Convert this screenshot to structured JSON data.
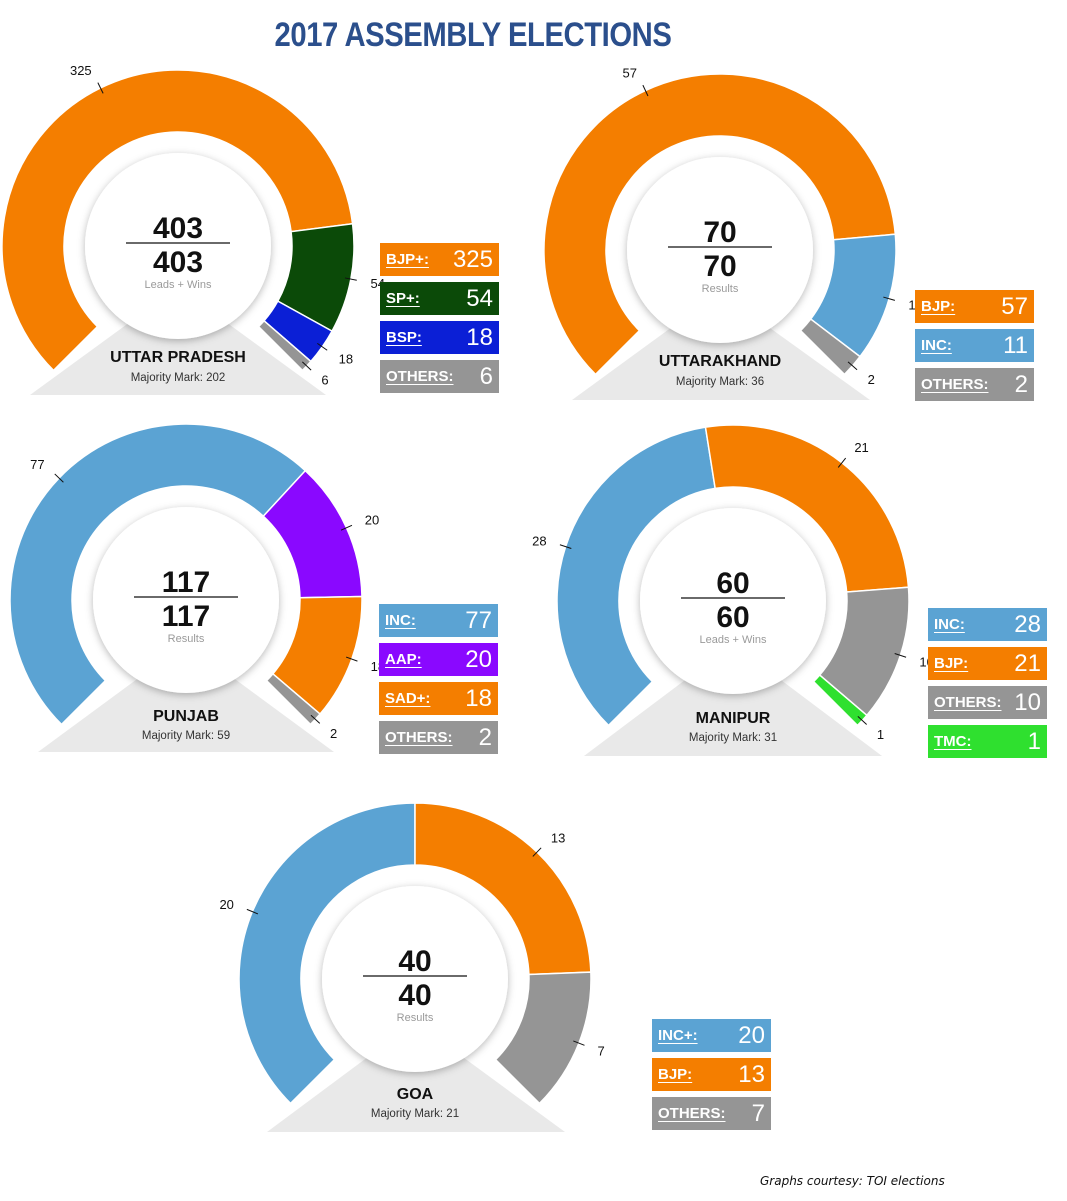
{
  "title": "2017 ASSEMBLY ELECTIONS",
  "credit": "Graphs courtesy: TOI elections",
  "chart_data": [
    {
      "type": "pie",
      "title": "UTTAR PRADESH",
      "majority": "Majority Mark: 202",
      "total_top": "403",
      "total_bottom": "403",
      "subcaption": "Leads + Wins",
      "slices": [
        {
          "label": "BJP+:",
          "value": 325,
          "color": "#f47e00"
        },
        {
          "label": "SP+:",
          "value": 54,
          "color": "#0b4a08"
        },
        {
          "label": "BSP:",
          "value": 18,
          "color": "#0b1fd6"
        },
        {
          "label": "OTHERS:",
          "value": 6,
          "color": "#959595"
        }
      ]
    },
    {
      "type": "pie",
      "title": "UTTARAKHAND",
      "majority": "Majority Mark: 36",
      "total_top": "70",
      "total_bottom": "70",
      "subcaption": "Results",
      "slices": [
        {
          "label": "BJP:",
          "value": 57,
          "color": "#f47e00"
        },
        {
          "label": "INC:",
          "value": 11,
          "color": "#5ba3d3"
        },
        {
          "label": "OTHERS:",
          "value": 2,
          "color": "#959595"
        }
      ]
    },
    {
      "type": "pie",
      "title": "PUNJAB",
      "majority": "Majority Mark: 59",
      "total_top": "117",
      "total_bottom": "117",
      "subcaption": "Results",
      "slices": [
        {
          "label": "INC:",
          "value": 77,
          "color": "#5ba3d3"
        },
        {
          "label": "AAP:",
          "value": 20,
          "color": "#8a08ff"
        },
        {
          "label": "SAD+:",
          "value": 18,
          "color": "#f47e00"
        },
        {
          "label": "OTHERS:",
          "value": 2,
          "color": "#959595"
        }
      ]
    },
    {
      "type": "pie",
      "title": "MANIPUR",
      "majority": "Majority Mark: 31",
      "total_top": "60",
      "total_bottom": "60",
      "subcaption": "Leads + Wins",
      "slices": [
        {
          "label": "INC:",
          "value": 28,
          "color": "#5ba3d3"
        },
        {
          "label": "BJP:",
          "value": 21,
          "color": "#f47e00"
        },
        {
          "label": "OTHERS:",
          "value": 10,
          "color": "#959595"
        },
        {
          "label": "TMC:",
          "value": 1,
          "color": "#2fe02f"
        }
      ]
    },
    {
      "type": "pie",
      "title": "GOA",
      "majority": "Majority Mark: 21",
      "total_top": "40",
      "total_bottom": "40",
      "subcaption": "Results",
      "slices": [
        {
          "label": "INC+:",
          "value": 20,
          "color": "#5ba3d3"
        },
        {
          "label": "BJP:",
          "value": 13,
          "color": "#f47e00"
        },
        {
          "label": "OTHERS:",
          "value": 7,
          "color": "#959595"
        }
      ]
    }
  ]
}
